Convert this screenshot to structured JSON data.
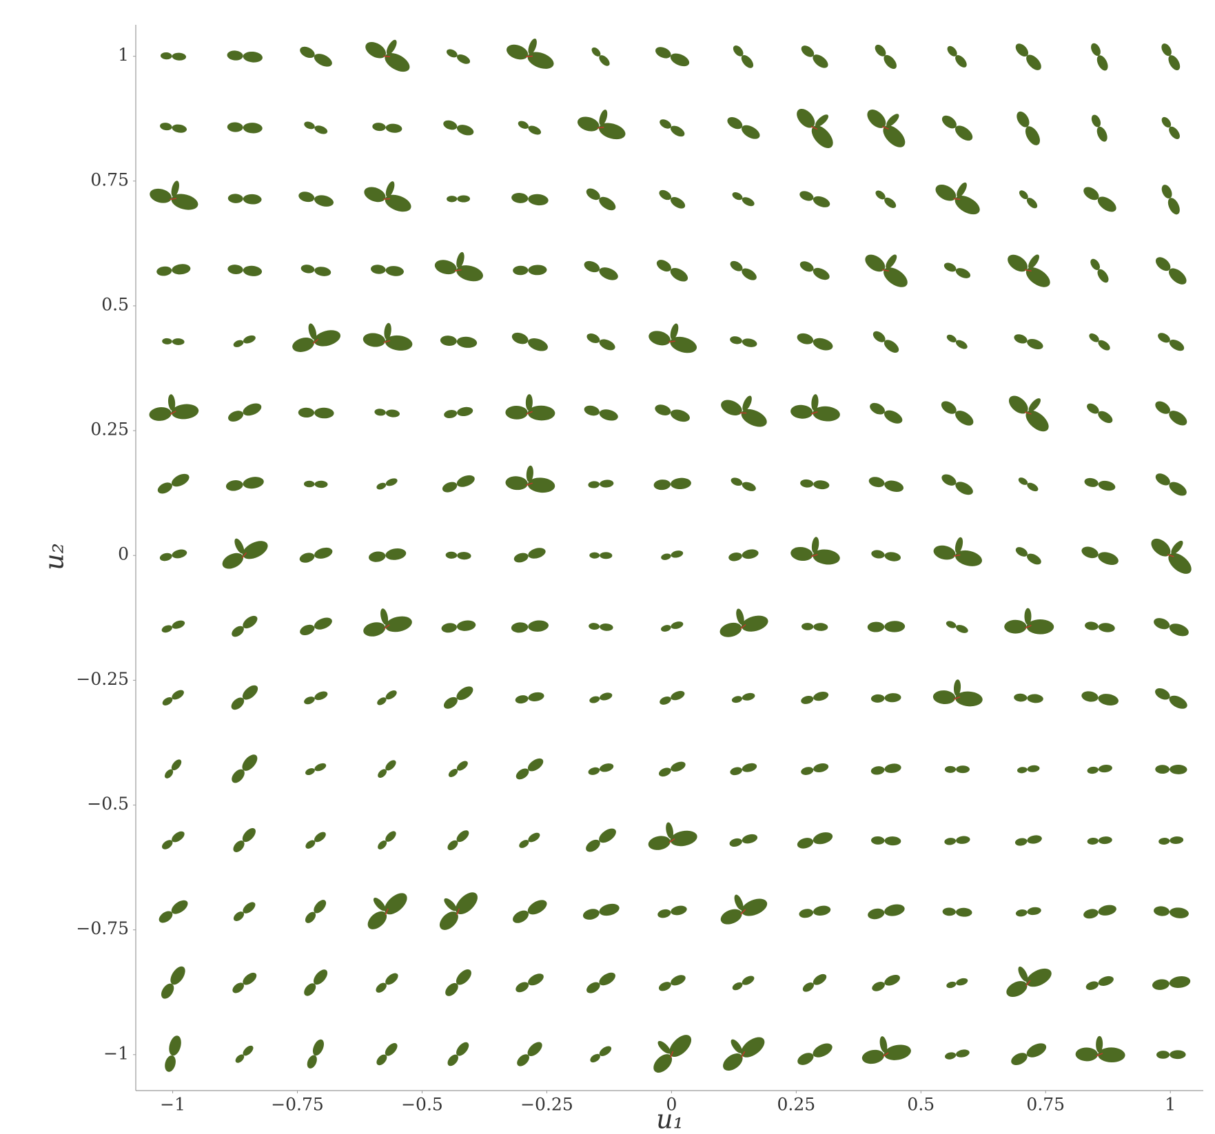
{
  "chart_data": {
    "type": "image-grid",
    "x_label": "u₁",
    "y_label": "u₂",
    "xlim": [
      -1.074,
      1.066
    ],
    "ylim": [
      -1.072,
      1.063
    ],
    "xticks": [
      {
        "value": -1,
        "label": "−1"
      },
      {
        "value": -0.75,
        "label": "−0.75"
      },
      {
        "value": -0.5,
        "label": "−0.5"
      },
      {
        "value": -0.25,
        "label": "−0.25"
      },
      0,
      0.25,
      0.5,
      0.75,
      1
    ],
    "yticks": [
      {
        "value": -1,
        "label": "−1"
      },
      {
        "value": -0.75,
        "label": "−0.75"
      },
      {
        "value": -0.5,
        "label": "−0.5"
      },
      {
        "value": -0.25,
        "label": "−0.25"
      },
      0,
      0.25,
      0.5,
      0.75,
      1
    ],
    "color": "#4d6b22"
  }
}
